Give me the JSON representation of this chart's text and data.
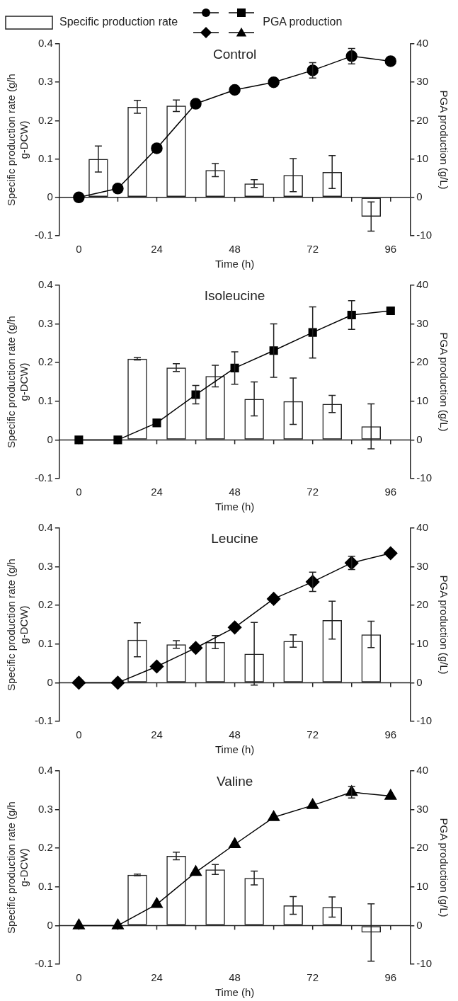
{
  "chart_data": [
    {
      "type": "bar",
      "title": "Control",
      "xlabel": "Time (h)",
      "ylabel": "Specific production rate (g/h g-DCW)",
      "y2label": "PGA production (g/L)",
      "legend": "top",
      "xlim": [
        0,
        96
      ],
      "xticks": [
        0,
        {
          "value": 12,
          "label": null
        },
        24,
        {
          "value": 36,
          "label": null
        },
        48,
        {
          "value": 60,
          "label": null
        },
        72,
        {
          "value": 84,
          "label": null
        },
        96
      ],
      "ylim": [
        -0.1,
        0.4
      ],
      "yticks": [
        -0.1,
        0,
        0.1,
        0.2,
        0.3,
        0.4
      ],
      "y2lim": [
        -10,
        40
      ],
      "y2ticks": [
        -10,
        0,
        10,
        20,
        30,
        40
      ],
      "series": [
        {
          "name": "Specific production rate",
          "color": "#222222",
          "x": [
            6,
            18,
            30,
            42,
            54,
            66,
            78,
            90
          ],
          "values": [
            0.1,
            0.236,
            0.239,
            0.071,
            0.036,
            0.058,
            0.066,
            -0.05
          ],
          "errors": [
            0.034,
            0.017,
            0.015,
            0.017,
            0.01,
            0.043,
            0.043,
            0.038
          ]
        },
        {
          "type": "line",
          "name": "PGA production",
          "color": "#000000",
          "axis": "y2",
          "marker": "circle",
          "x": [
            0,
            12,
            24,
            36,
            48,
            60,
            72,
            84,
            96
          ],
          "values": [
            0,
            2.3,
            12.8,
            24.4,
            28,
            30,
            33.1,
            36.8,
            35.5
          ],
          "errors": [
            null,
            null,
            null,
            null,
            null,
            null,
            2,
            2,
            null
          ]
        }
      ]
    },
    {
      "type": "bar",
      "title": "Isoleucine",
      "xlabel": "Time (h)",
      "ylabel": "Specific production rate (g/h g-DCW)",
      "y2label": "PGA production (g/L)",
      "xlim": [
        0,
        96
      ],
      "xticks": [
        0,
        {
          "value": 12,
          "label": null
        },
        24,
        {
          "value": 36,
          "label": null
        },
        48,
        {
          "value": 60,
          "label": null
        },
        72,
        {
          "value": 84,
          "label": null
        },
        96
      ],
      "ylim": [
        -0.1,
        0.4
      ],
      "yticks": [
        -0.1,
        0,
        0.1,
        0.2,
        0.3,
        0.4
      ],
      "y2lim": [
        -10,
        40
      ],
      "y2ticks": [
        -10,
        0,
        10,
        20,
        30,
        40
      ],
      "series": [
        {
          "color": "#222222",
          "x": [
            18,
            30,
            42,
            54,
            66,
            78,
            90
          ],
          "values": [
            0.21,
            0.187,
            0.165,
            0.106,
            0.1,
            0.093,
            0.035
          ],
          "errors": [
            0.003,
            0.01,
            0.028,
            0.044,
            0.06,
            0.022,
            0.058
          ]
        },
        {
          "type": "line",
          "color": "#000000",
          "axis": "y2",
          "marker": "square",
          "x": [
            0,
            12,
            24,
            36,
            48,
            60,
            72,
            84,
            96
          ],
          "values": [
            0,
            0,
            4.4,
            11.7,
            18.6,
            23.1,
            27.8,
            32.3,
            33.4
          ],
          "errors": [
            null,
            null,
            null,
            2.4,
            4.2,
            6.9,
            6.6,
            3.7,
            null
          ]
        }
      ]
    },
    {
      "type": "bar",
      "title": "Leucine",
      "xlabel": "Time (h)",
      "ylabel": "Specific production rate (g/h g-DCW)",
      "y2label": "PGA production (g/L)",
      "xlim": [
        0,
        96
      ],
      "xticks": [
        0,
        {
          "value": 12,
          "label": null
        },
        24,
        {
          "value": 36,
          "label": null
        },
        48,
        {
          "value": 60,
          "label": null
        },
        72,
        {
          "value": 84,
          "label": null
        },
        96
      ],
      "ylim": [
        -0.1,
        0.4
      ],
      "yticks": [
        -0.1,
        0,
        0.1,
        0.2,
        0.3,
        0.4
      ],
      "y2lim": [
        -10,
        40
      ],
      "y2ticks": [
        -10,
        0,
        10,
        20,
        30,
        40
      ],
      "series": [
        {
          "color": "#222222",
          "x": [
            18,
            30,
            42,
            54,
            66,
            78,
            90
          ],
          "values": [
            0.111,
            0.099,
            0.105,
            0.075,
            0.108,
            0.162,
            0.125
          ],
          "errors": [
            0.044,
            0.01,
            0.017,
            0.081,
            0.016,
            0.049,
            0.034
          ]
        },
        {
          "type": "line",
          "color": "#000000",
          "axis": "y2",
          "marker": "diamond",
          "x": [
            0,
            12,
            24,
            36,
            48,
            60,
            72,
            84,
            96
          ],
          "values": [
            0,
            0,
            4.2,
            9,
            14.3,
            21.7,
            26.1,
            31,
            33.5
          ],
          "errors": [
            null,
            null,
            null,
            null,
            null,
            null,
            2.5,
            1.7,
            null
          ]
        }
      ]
    },
    {
      "type": "bar",
      "title": "Valine",
      "xlabel": "Time (h)",
      "ylabel": "Specific production rate (g/h g-DCW)",
      "y2label": "PGA production (g/L)",
      "xlim": [
        0,
        96
      ],
      "xticks": [
        0,
        {
          "value": 12,
          "label": null
        },
        24,
        {
          "value": 36,
          "label": null
        },
        48,
        {
          "value": 60,
          "label": null
        },
        72,
        {
          "value": 84,
          "label": null
        },
        96
      ],
      "ylim": [
        -0.1,
        0.4
      ],
      "yticks": [
        -0.1,
        0,
        0.1,
        0.2,
        0.3,
        0.4
      ],
      "y2lim": [
        -10,
        40
      ],
      "y2ticks": [
        -10,
        0,
        10,
        20,
        30,
        40
      ],
      "series": [
        {
          "color": "#222222",
          "x": [
            18,
            30,
            42,
            54,
            66,
            78,
            90
          ],
          "values": [
            0.131,
            0.18,
            0.145,
            0.123,
            0.052,
            0.048,
            -0.018
          ],
          "errors": [
            0.002,
            0.01,
            0.013,
            0.018,
            0.023,
            0.026,
            0.074
          ]
        },
        {
          "type": "line",
          "color": "#000000",
          "axis": "y2",
          "marker": "triangle",
          "x": [
            0,
            12,
            24,
            36,
            48,
            60,
            72,
            84,
            96
          ],
          "values": [
            0,
            0,
            5.5,
            13.8,
            21,
            28,
            31.1,
            34.5,
            33.5
          ],
          "errors": [
            null,
            null,
            null,
            null,
            null,
            null,
            null,
            1.5,
            null
          ]
        }
      ]
    }
  ]
}
